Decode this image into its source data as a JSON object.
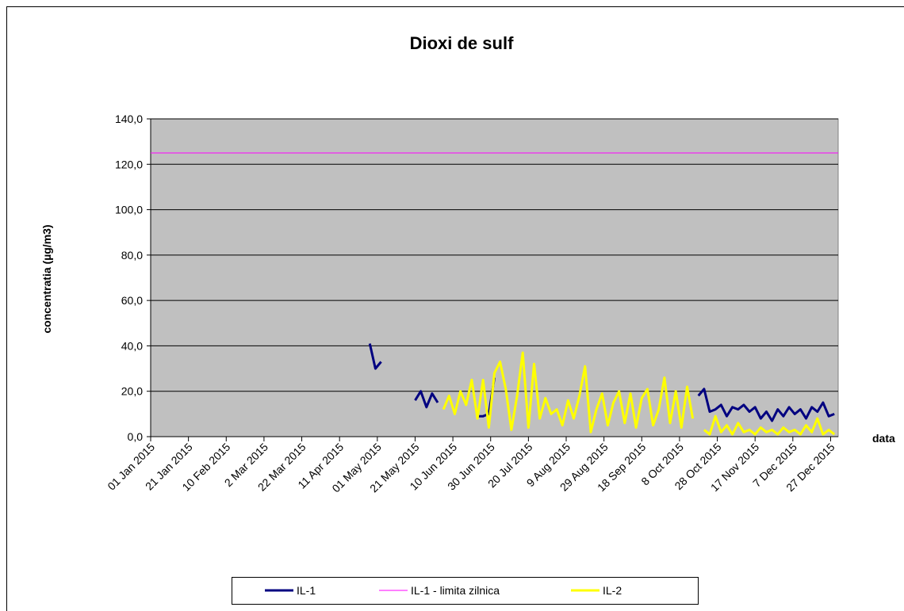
{
  "chart_data": {
    "type": "line",
    "title": "Dioxi de sulf",
    "y_label": "concentratia (µg/m3)",
    "x_label": "data",
    "xlim": [
      "2015-01-01",
      "2015-12-31"
    ],
    "xticks": [
      {
        "value": "2015-01-01",
        "label": "01 Jan 2015"
      },
      {
        "value": "2015-01-21",
        "label": "21 Jan 2015"
      },
      {
        "value": "2015-02-10",
        "label": "10 Feb 2015"
      },
      {
        "value": "2015-03-02",
        "label": "2 Mar 2015"
      },
      {
        "value": "2015-03-22",
        "label": "22 Mar 2015"
      },
      {
        "value": "2015-04-11",
        "label": "11 Apr 2015"
      },
      {
        "value": "2015-05-01",
        "label": "01 May 2015"
      },
      {
        "value": "2015-05-21",
        "label": "21 May 2015"
      },
      {
        "value": "2015-06-10",
        "label": "10 Jun 2015"
      },
      {
        "value": "2015-06-30",
        "label": "30 Jun 2015"
      },
      {
        "value": "2015-07-20",
        "label": "20 Jul 2015"
      },
      {
        "value": "2015-08-09",
        "label": "9 Aug 2015"
      },
      {
        "value": "2015-08-29",
        "label": "29 Aug 2015"
      },
      {
        "value": "2015-09-18",
        "label": "18 Sep 2015"
      },
      {
        "value": "2015-10-08",
        "label": "8 Oct 2015"
      },
      {
        "value": "2015-10-28",
        "label": "28 Oct 2015"
      },
      {
        "value": "2015-11-17",
        "label": "17 Nov 2015"
      },
      {
        "value": "2015-12-07",
        "label": "7 Dec 2015"
      },
      {
        "value": "2015-12-27",
        "label": "27 Dec 2015"
      }
    ],
    "ylim": [
      0,
      140
    ],
    "yticks": [
      {
        "value": 0,
        "label": "0,0"
      },
      {
        "value": 20,
        "label": "20,0"
      },
      {
        "value": 40,
        "label": "40,0"
      },
      {
        "value": 60,
        "label": "60,0"
      },
      {
        "value": 80,
        "label": "80,0"
      },
      {
        "value": 100,
        "label": "100,0"
      },
      {
        "value": 120,
        "label": "120,0"
      },
      {
        "value": 140,
        "label": "140,0"
      }
    ],
    "grid": true,
    "plot_background": "#c0c0c0",
    "legend": "bottom",
    "x": [
      "2015-04-27",
      "2015-04-30",
      "2015-05-03",
      "2015-05-06",
      "2015-05-09",
      "2015-05-12",
      "2015-05-15",
      "2015-05-18",
      "2015-05-21",
      "2015-05-24",
      "2015-05-27",
      "2015-05-30",
      "2015-06-02",
      "2015-06-05",
      "2015-06-08",
      "2015-06-11",
      "2015-06-14",
      "2015-06-17",
      "2015-06-20",
      "2015-06-23",
      "2015-06-26",
      "2015-06-29",
      "2015-07-02",
      "2015-07-05",
      "2015-07-08",
      "2015-07-11",
      "2015-07-14",
      "2015-07-17",
      "2015-07-20",
      "2015-07-23",
      "2015-07-26",
      "2015-07-29",
      "2015-08-01",
      "2015-08-04",
      "2015-08-07",
      "2015-08-10",
      "2015-08-13",
      "2015-08-16",
      "2015-08-19",
      "2015-08-22",
      "2015-08-25",
      "2015-08-28",
      "2015-08-31",
      "2015-09-03",
      "2015-09-06",
      "2015-09-09",
      "2015-09-12",
      "2015-09-15",
      "2015-09-18",
      "2015-09-21",
      "2015-09-24",
      "2015-09-27",
      "2015-09-30",
      "2015-10-03",
      "2015-10-06",
      "2015-10-09",
      "2015-10-12",
      "2015-10-15",
      "2015-10-18",
      "2015-10-21",
      "2015-10-24",
      "2015-10-27",
      "2015-10-30",
      "2015-11-02",
      "2015-11-05",
      "2015-11-08",
      "2015-11-11",
      "2015-11-14",
      "2015-11-17",
      "2015-11-20",
      "2015-11-23",
      "2015-11-26",
      "2015-11-29",
      "2015-12-02",
      "2015-12-05",
      "2015-12-08",
      "2015-12-11",
      "2015-12-14",
      "2015-12-17",
      "2015-12-20",
      "2015-12-23",
      "2015-12-26",
      "2015-12-29"
    ],
    "series": [
      {
        "name": "IL-1",
        "color": "#000080",
        "width": 3,
        "values": [
          41,
          30,
          33,
          null,
          null,
          null,
          null,
          null,
          16,
          20,
          13,
          19,
          15,
          null,
          null,
          null,
          null,
          null,
          null,
          9,
          9,
          10,
          26,
          null,
          null,
          null,
          null,
          null,
          null,
          null,
          null,
          null,
          null,
          null,
          null,
          null,
          null,
          null,
          null,
          null,
          null,
          null,
          null,
          null,
          null,
          null,
          null,
          null,
          null,
          null,
          null,
          null,
          null,
          null,
          null,
          null,
          null,
          null,
          18,
          21,
          11,
          12,
          14,
          9,
          13,
          12,
          14,
          11,
          13,
          8,
          11,
          7,
          12,
          9,
          13,
          10,
          12,
          8,
          13,
          11,
          15,
          9,
          10
        ]
      },
      {
        "name": "IL-1 - limita zilnica",
        "color": "#ff00ff",
        "width": 1,
        "x": [
          "2015-01-01",
          "2015-12-31"
        ],
        "values": [
          125,
          125
        ]
      },
      {
        "name": "IL-2",
        "color": "#ffff00",
        "width": 3,
        "values": [
          null,
          null,
          null,
          null,
          null,
          null,
          null,
          null,
          null,
          null,
          null,
          null,
          null,
          12,
          18,
          10,
          20,
          14,
          25,
          8,
          25,
          4,
          28,
          33,
          21,
          3,
          18,
          37,
          4,
          32,
          8,
          17,
          10,
          12,
          5,
          16,
          8,
          18,
          31,
          2,
          12,
          19,
          5,
          15,
          20,
          6,
          19,
          4,
          17,
          21,
          5,
          12,
          26,
          6,
          20,
          4,
          22,
          8,
          null,
          3,
          1,
          9,
          2,
          5,
          1,
          6,
          2,
          3,
          1,
          4,
          2,
          3,
          1,
          4,
          2,
          3,
          1,
          5,
          2,
          8,
          1,
          3,
          1
        ]
      }
    ]
  }
}
